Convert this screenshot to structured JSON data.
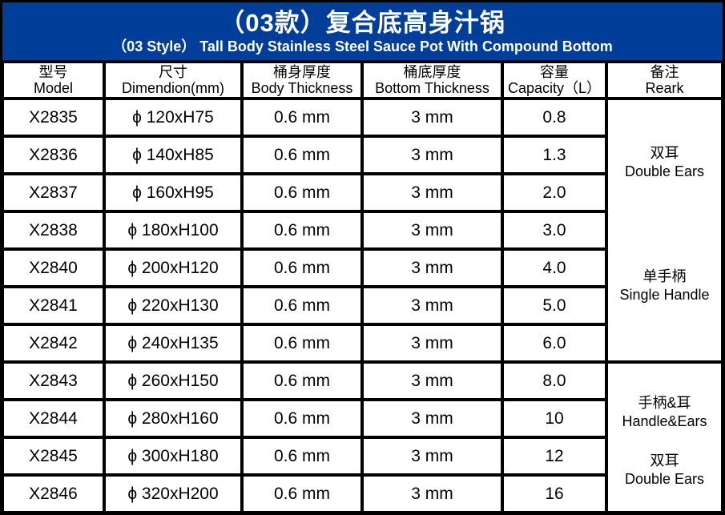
{
  "banner": {
    "title_cn": "（03款）复合底高身汁锅",
    "title_en": "（03 Style） Tall Body Stainless Steel Sauce Pot With Compound Bottom"
  },
  "colors": {
    "banner_bg": "#003e99",
    "banner_text": "#ffffff",
    "border": "#000000",
    "cell_bg": "#ffffff",
    "table_text": "#000000"
  },
  "table": {
    "headers": [
      {
        "cn": "型号",
        "en": "Model"
      },
      {
        "cn": "尺寸",
        "en": "Dimendion(mm)"
      },
      {
        "cn": "桶身厚度",
        "en": "Body Thickness"
      },
      {
        "cn": "桶底厚度",
        "en": "Bottom Thickness"
      },
      {
        "cn": "容量",
        "en": "Capacity（L）"
      },
      {
        "cn": "备注",
        "en": "Reark"
      }
    ],
    "rows": [
      {
        "model": "X2835",
        "dimension": "ϕ 120xH75",
        "body_thickness": "0.6 mm",
        "bottom_thickness": "3 mm",
        "capacity": "0.8"
      },
      {
        "model": "X2836",
        "dimension": "ϕ 140xH85",
        "body_thickness": "0.6 mm",
        "bottom_thickness": "3 mm",
        "capacity": "1.3"
      },
      {
        "model": "X2837",
        "dimension": "ϕ 160xH95",
        "body_thickness": "0.6 mm",
        "bottom_thickness": "3 mm",
        "capacity": "2.0"
      },
      {
        "model": "X2838",
        "dimension": "ϕ 180xH100",
        "body_thickness": "0.6 mm",
        "bottom_thickness": "3 mm",
        "capacity": "3.0"
      },
      {
        "model": "X2840",
        "dimension": "ϕ 200xH120",
        "body_thickness": "0.6 mm",
        "bottom_thickness": "3 mm",
        "capacity": "4.0"
      },
      {
        "model": "X2841",
        "dimension": "ϕ 220xH130",
        "body_thickness": "0.6 mm",
        "bottom_thickness": "3 mm",
        "capacity": "5.0"
      },
      {
        "model": "X2842",
        "dimension": "ϕ 240xH135",
        "body_thickness": "0.6 mm",
        "bottom_thickness": "3 mm",
        "capacity": "6.0"
      },
      {
        "model": "X2843",
        "dimension": "ϕ 260xH150",
        "body_thickness": "0.6 mm",
        "bottom_thickness": "3 mm",
        "capacity": "8.0"
      },
      {
        "model": "X2844",
        "dimension": "ϕ 280xH160",
        "body_thickness": "0.6 mm",
        "bottom_thickness": "3 mm",
        "capacity": "10"
      },
      {
        "model": "X2845",
        "dimension": "ϕ 300xH180",
        "body_thickness": "0.6 mm",
        "bottom_thickness": "3 mm",
        "capacity": "12"
      },
      {
        "model": "X2846",
        "dimension": "ϕ 320xH200",
        "body_thickness": "0.6 mm",
        "bottom_thickness": "3 mm",
        "capacity": "16"
      }
    ],
    "remark_groups": [
      {
        "row_span": 7,
        "labels": [
          {
            "cn": "双耳",
            "en": "Double Ears"
          },
          {
            "cn": "单手柄",
            "en": "Single Handle"
          }
        ]
      },
      {
        "row_span": 4,
        "labels": [
          {
            "cn": "手柄&耳",
            "en": "Handle&Ears"
          },
          {
            "cn": "双耳",
            "en": "Double Ears"
          }
        ]
      }
    ]
  }
}
